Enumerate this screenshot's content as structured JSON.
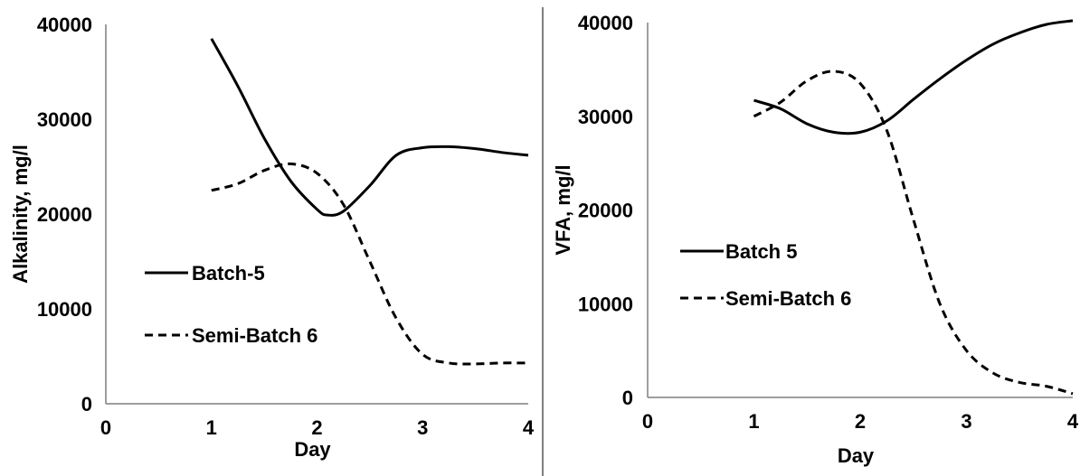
{
  "chart_data": [
    {
      "type": "line",
      "title": "",
      "xlabel": "Day",
      "ylabel": "Alkalinity, mg/l",
      "xlim": [
        0,
        4
      ],
      "ylim": [
        0,
        40000
      ],
      "x_ticks": [
        "0",
        "1",
        "2",
        "3",
        "4"
      ],
      "y_ticks": [
        "0",
        "10000",
        "20000",
        "30000",
        "40000"
      ],
      "grid": false,
      "legend_position": "left",
      "series": [
        {
          "name": "Batch-5",
          "style": "solid",
          "color": "#000000",
          "x": [
            1,
            1.25,
            1.5,
            1.75,
            2,
            2.1,
            2.25,
            2.5,
            2.75,
            3,
            3.25,
            3.5,
            3.75,
            4
          ],
          "y": [
            38500,
            33500,
            28000,
            23500,
            20500,
            19900,
            20300,
            23000,
            26200,
            27000,
            27100,
            26900,
            26500,
            26200
          ]
        },
        {
          "name": "Semi-Batch 6",
          "style": "dashed",
          "color": "#000000",
          "x": [
            1,
            1.25,
            1.5,
            1.75,
            2,
            2.25,
            2.5,
            2.75,
            3,
            3.25,
            3.5,
            3.75,
            4
          ],
          "y": [
            22500,
            23200,
            24600,
            25300,
            24300,
            21000,
            15000,
            9000,
            5200,
            4300,
            4200,
            4300,
            4300
          ]
        }
      ]
    },
    {
      "type": "line",
      "title": "",
      "xlabel": "Day",
      "ylabel": "VFA, mg/l",
      "xlim": [
        0,
        4
      ],
      "ylim": [
        0,
        40000
      ],
      "x_ticks": [
        "0",
        "1",
        "2",
        "3",
        "4"
      ],
      "y_ticks": [
        "0",
        "10000",
        "20000",
        "30000",
        "40000"
      ],
      "grid": false,
      "legend_position": "left",
      "series": [
        {
          "name": "Batch 5",
          "style": "solid",
          "color": "#000000",
          "x": [
            1,
            1.25,
            1.5,
            1.75,
            2,
            2.25,
            2.5,
            2.75,
            3,
            3.25,
            3.5,
            3.75,
            4
          ],
          "y": [
            31700,
            30800,
            29200,
            28300,
            28300,
            29500,
            31800,
            34000,
            36000,
            37700,
            38900,
            39800,
            40200
          ]
        },
        {
          "name": "Semi-Batch 6",
          "style": "dashed",
          "color": "#000000",
          "x": [
            1,
            1.25,
            1.5,
            1.75,
            2,
            2.25,
            2.5,
            2.75,
            3,
            3.25,
            3.5,
            3.75,
            4
          ],
          "y": [
            30000,
            31500,
            33800,
            34800,
            33500,
            28500,
            19000,
            10000,
            5000,
            2600,
            1600,
            1200,
            400
          ]
        }
      ]
    }
  ]
}
